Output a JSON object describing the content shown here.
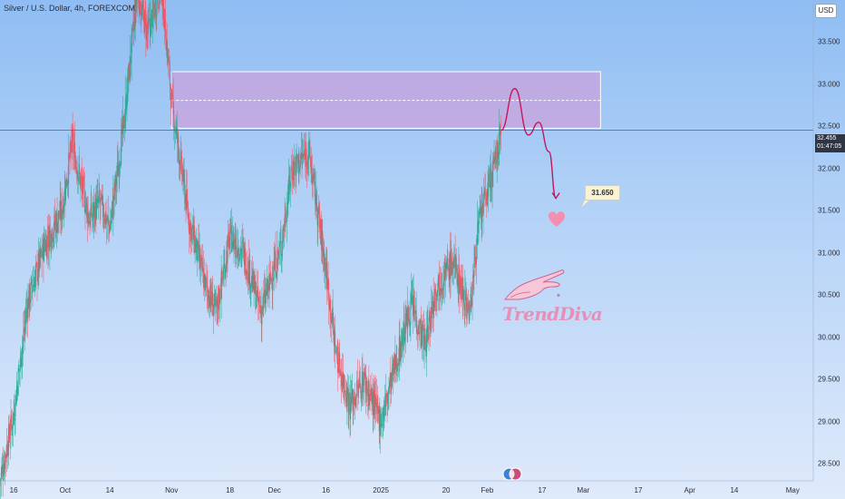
{
  "header": {
    "symbol_title": "Silver / U.S. Dollar, 4h, FOREXCOM",
    "currency": "USD"
  },
  "current_price": {
    "value": 32.455,
    "label": "32.455",
    "countdown": "01:47:05"
  },
  "target_label": "31.650",
  "watermark_text": "TrendDiva",
  "colors": {
    "up_candle": "#22ab94",
    "down_candle": "#f7525f",
    "zone_fill": "#c9a2dc",
    "zone_border": "#ffffff",
    "projection": "#c2185b",
    "heart": "#f48fb1",
    "price_line": "#5d6476"
  },
  "chart_data": {
    "type": "candlestick",
    "symbol": "Silver / U.S. Dollar",
    "timeframe": "4h",
    "y_axis": {
      "range": [
        28.3,
        34.0
      ],
      "ticks": [
        "28.500",
        "29.000",
        "29.500",
        "30.000",
        "30.500",
        "31.000",
        "31.500",
        "32.000",
        "32.500",
        "33.000",
        "33.500"
      ],
      "tick_values": [
        28.5,
        29.0,
        29.5,
        30.0,
        30.5,
        31.0,
        31.5,
        32.0,
        32.5,
        33.0,
        33.5
      ]
    },
    "x_axis": {
      "range": [
        "2024-09-12",
        "2025-05-07"
      ],
      "tick_labels": [
        "16",
        "Oct",
        "14",
        "Nov",
        "18",
        "Dec",
        "16",
        "2025",
        "20",
        "Feb",
        "17",
        "Mar",
        "17",
        "Apr",
        "14",
        "May"
      ],
      "tick_dates": [
        "2024-09-16",
        "2024-10-01",
        "2024-10-14",
        "2024-11-01",
        "2024-11-18",
        "2024-12-01",
        "2024-12-16",
        "2025-01-01",
        "2025-01-20",
        "2025-02-01",
        "2025-02-17",
        "2025-03-01",
        "2025-03-17",
        "2025-04-01",
        "2025-04-14",
        "2025-05-01"
      ]
    },
    "price_path": [
      {
        "date": "2024-09-12",
        "price": 28.3
      },
      {
        "date": "2024-09-16",
        "price": 29.1
      },
      {
        "date": "2024-09-20",
        "price": 30.4
      },
      {
        "date": "2024-09-25",
        "price": 31.1
      },
      {
        "date": "2024-09-30",
        "price": 31.5
      },
      {
        "date": "2024-10-03",
        "price": 32.3
      },
      {
        "date": "2024-10-08",
        "price": 31.4
      },
      {
        "date": "2024-10-11",
        "price": 31.6
      },
      {
        "date": "2024-10-14",
        "price": 31.3
      },
      {
        "date": "2024-10-18",
        "price": 32.5
      },
      {
        "date": "2024-10-22",
        "price": 34.1
      },
      {
        "date": "2024-10-25",
        "price": 33.6
      },
      {
        "date": "2024-10-29",
        "price": 34.2
      },
      {
        "date": "2024-11-01",
        "price": 32.8
      },
      {
        "date": "2024-11-06",
        "price": 31.4
      },
      {
        "date": "2024-11-11",
        "price": 30.6
      },
      {
        "date": "2024-11-14",
        "price": 30.3
      },
      {
        "date": "2024-11-18",
        "price": 31.2
      },
      {
        "date": "2024-11-22",
        "price": 31.0
      },
      {
        "date": "2024-11-27",
        "price": 30.3
      },
      {
        "date": "2024-12-03",
        "price": 31.1
      },
      {
        "date": "2024-12-06",
        "price": 32.0
      },
      {
        "date": "2024-12-11",
        "price": 32.2
      },
      {
        "date": "2024-12-16",
        "price": 30.8
      },
      {
        "date": "2024-12-19",
        "price": 29.8
      },
      {
        "date": "2024-12-23",
        "price": 29.2
      },
      {
        "date": "2024-12-27",
        "price": 29.5
      },
      {
        "date": "2025-01-01",
        "price": 29.0
      },
      {
        "date": "2025-01-06",
        "price": 29.8
      },
      {
        "date": "2025-01-10",
        "price": 30.4
      },
      {
        "date": "2025-01-14",
        "price": 29.9
      },
      {
        "date": "2025-01-17",
        "price": 30.6
      },
      {
        "date": "2025-01-22",
        "price": 30.9
      },
      {
        "date": "2025-01-27",
        "price": 30.3
      },
      {
        "date": "2025-01-29",
        "price": 31.2
      },
      {
        "date": "2025-01-31",
        "price": 31.6
      },
      {
        "date": "2025-02-03",
        "price": 32.0
      },
      {
        "date": "2025-02-05",
        "price": 32.455
      }
    ],
    "supply_zone": {
      "top": 33.15,
      "bottom": 32.48,
      "mid": 32.81,
      "start": "2024-11-01",
      "end": "2025-03-06"
    },
    "projection_path": [
      {
        "date": "2025-02-05",
        "price": 32.455
      },
      {
        "date": "2025-02-09",
        "price": 32.95
      },
      {
        "date": "2025-02-13",
        "price": 32.4
      },
      {
        "date": "2025-02-16",
        "price": 32.55
      },
      {
        "date": "2025-02-19",
        "price": 32.2
      },
      {
        "date": "2025-02-21",
        "price": 31.65
      }
    ],
    "target": 31.65,
    "grid": false
  }
}
